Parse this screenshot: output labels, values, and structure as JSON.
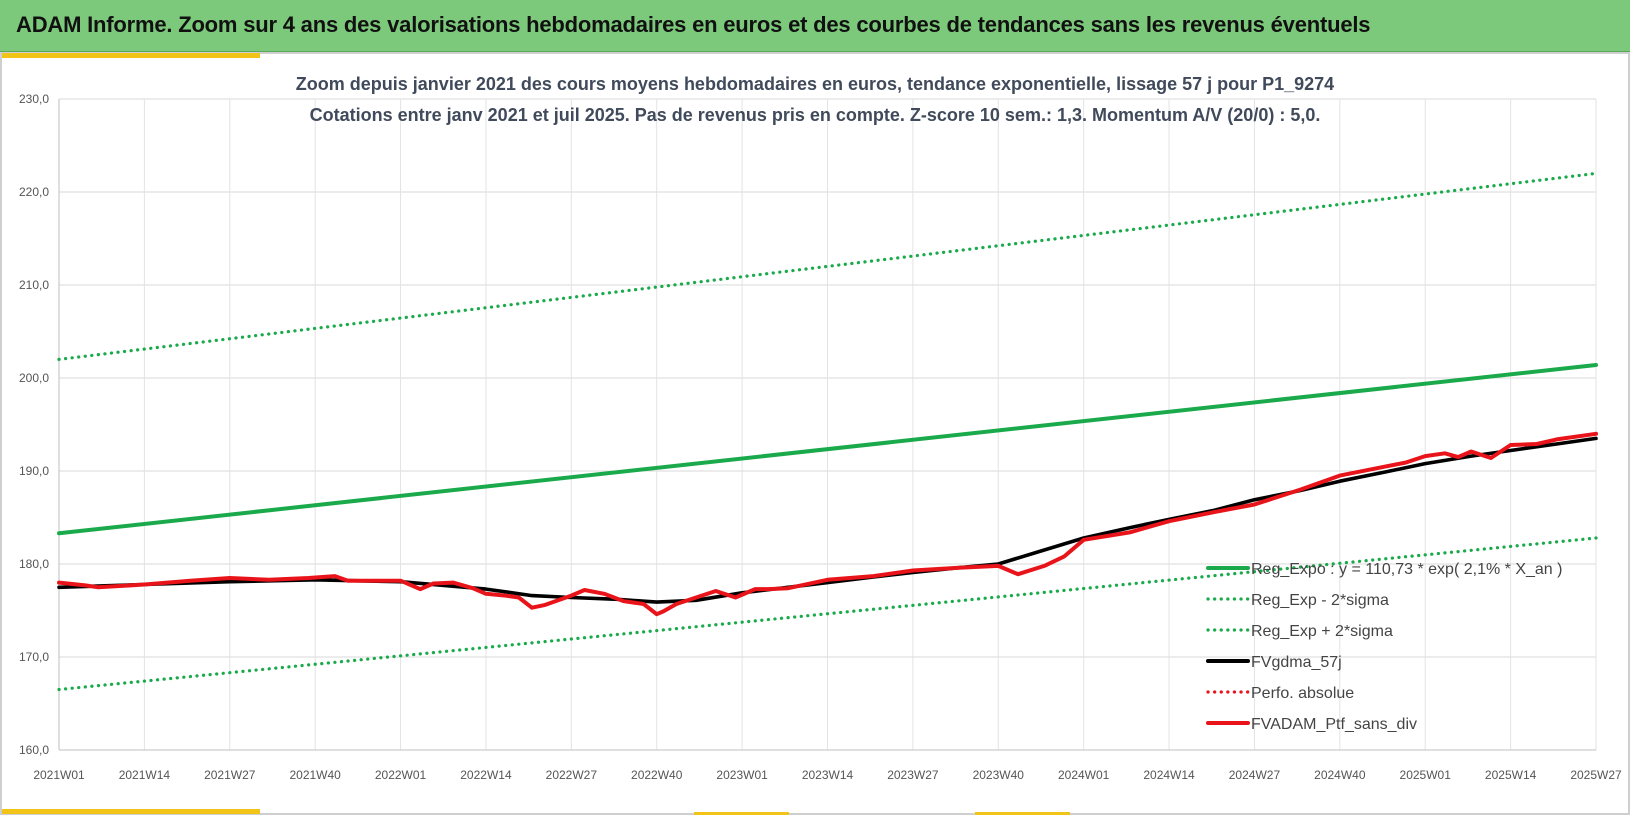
{
  "header": {
    "title": "ADAM Informe. Zoom sur 4 ans des valorisations hebdomadaires en euros et des courbes de tendances sans les revenus éventuels"
  },
  "colors": {
    "banner": "#7dc97b",
    "accent": "#f2c418",
    "reg_green": "#1aaa4b",
    "mma_black": "#000000",
    "ptf_red": "#e8141a"
  },
  "chart_data": {
    "type": "line",
    "title": "Zoom depuis janvier 2021 des cours moyens hebdomadaires en euros, tendance exponentielle, lissage 57 j pour P1_9274",
    "subtitle": "Cotations entre janv 2021 et juil 2025. Pas de revenus pris en compte. Z-score 10 sem.: 1,3. Momentum A/V (20/0) : 5,0.",
    "x_categories": [
      "2021W01",
      "2021W14",
      "2021W27",
      "2021W40",
      "2022W01",
      "2022W14",
      "2022W27",
      "2022W40",
      "2023W01",
      "2023W14",
      "2023W27",
      "2023W40",
      "2024W01",
      "2024W14",
      "2024W27",
      "2024W40",
      "2025W01",
      "2025W14",
      "2025W27"
    ],
    "y_ticks": [
      "160,0",
      "170,0",
      "180,0",
      "190,0",
      "200,0",
      "210,0",
      "220,0",
      "230,0"
    ],
    "ylim": [
      160,
      230
    ],
    "grid": true,
    "legend_position": "bottom-right",
    "series": [
      {
        "name": "Reg_Expo : y = 110,73 * exp( 2,1% *  X_an )",
        "color": "#1aaa4b",
        "style": "solid",
        "x": [
          0,
          234
        ],
        "y": [
          183.3,
          201.4
        ]
      },
      {
        "name": "Reg_Exp - 2*sigma",
        "color": "#1aaa4b",
        "style": "dotted",
        "x": [
          0,
          234
        ],
        "y": [
          166.5,
          182.8
        ]
      },
      {
        "name": "Reg_Exp + 2*sigma",
        "color": "#1aaa4b",
        "style": "dotted",
        "x": [
          0,
          234
        ],
        "y": [
          202.0,
          222.0
        ]
      },
      {
        "name": "FVgdma_57j",
        "color": "#000000",
        "style": "solid",
        "x": [
          0,
          13,
          26,
          39,
          52,
          65,
          72,
          78,
          85,
          91,
          97,
          104,
          111,
          117,
          124,
          130,
          137,
          143,
          150,
          156,
          163,
          169,
          176,
          182,
          189,
          195,
          202,
          208,
          215,
          221,
          228,
          234
        ],
        "y": [
          177.5,
          177.8,
          178.1,
          178.3,
          178.1,
          177.3,
          176.6,
          176.4,
          176.2,
          175.9,
          176.1,
          176.9,
          177.5,
          178.0,
          178.6,
          179.1,
          179.6,
          180.0,
          181.5,
          182.8,
          183.9,
          184.8,
          185.8,
          186.9,
          187.9,
          188.9,
          189.9,
          190.8,
          191.6,
          192.2,
          192.9,
          193.5
        ]
      },
      {
        "name": "Perfo. absolue",
        "color": "#e8141a",
        "style": "dotted",
        "x": [],
        "y": []
      },
      {
        "name": "FVADAM_Ptf_sans_div",
        "color": "#e8141a",
        "style": "solid",
        "x": [
          0,
          4,
          6,
          13,
          20,
          26,
          32,
          38,
          42,
          44,
          48,
          52,
          55,
          57,
          60,
          63,
          65,
          68,
          70,
          72,
          74,
          78,
          80,
          83,
          86,
          89,
          91,
          92,
          94,
          97,
          100,
          103,
          106,
          108,
          111,
          117,
          124,
          130,
          137,
          143,
          146,
          150,
          153,
          156,
          163,
          169,
          176,
          182,
          189,
          195,
          202,
          205,
          208,
          211,
          213,
          215,
          218,
          221,
          225,
          228,
          234
        ],
        "y": [
          178.0,
          177.7,
          177.5,
          177.8,
          178.2,
          178.5,
          178.3,
          178.5,
          178.7,
          178.2,
          178.2,
          178.2,
          177.3,
          177.9,
          178.0,
          177.4,
          176.8,
          176.6,
          176.4,
          175.3,
          175.6,
          176.6,
          177.2,
          176.8,
          176.0,
          175.7,
          174.6,
          174.9,
          175.7,
          176.4,
          177.1,
          176.4,
          177.3,
          177.3,
          177.4,
          178.3,
          178.7,
          179.3,
          179.6,
          179.8,
          178.9,
          179.8,
          180.8,
          182.6,
          183.4,
          184.6,
          185.6,
          186.4,
          188.0,
          189.5,
          190.5,
          190.9,
          191.6,
          191.9,
          191.5,
          192.1,
          191.4,
          192.8,
          192.9,
          193.4,
          194.0
        ]
      }
    ]
  }
}
